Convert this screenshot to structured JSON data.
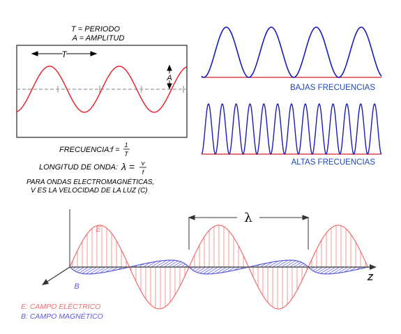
{
  "period_panel": {
    "legend_period": "T = PERIODO",
    "legend_amplitude": "A = AMPLITUD",
    "period_label": "T",
    "amplitude_label": "A"
  },
  "formulas": {
    "frequency_label": "FRECUENCIA:",
    "frequency_lhs": "f =",
    "frequency_num": "1",
    "frequency_den": "T",
    "wavelength_label": "LONGITUD DE ONDA:",
    "wavelength_lhs": "λ =",
    "wavelength_num": "v",
    "wavelength_den": "f",
    "em_note_line1": "PARA ONDAS ELECTROMAGNÉTICAS,",
    "em_note_line2": "V ES LA VELOCIDAD DE LA LUZ (C)"
  },
  "low_freq": {
    "label": "BAJAS FRECUENCIAS",
    "cycles": 4
  },
  "high_freq": {
    "label": "ALTAS FRECUENCIAS",
    "cycles": 13
  },
  "em_wave": {
    "lambda_label": "λ",
    "e_label": "E",
    "b_label": "B",
    "z_label": "Z",
    "legend_e": "E: CAMPO ELÉCTRICO",
    "legend_b": "B: CAMPO MAGNÉTICO"
  },
  "colors": {
    "wave_red": "#e8262f",
    "panel_line": "#222222",
    "axis_gray": "#999999",
    "freq_wave_blue": "#1a1ab8",
    "freq_baseline_red": "#d41f26",
    "freq_label_blue": "#1f48b8",
    "e_field": "#f07a7a",
    "b_field": "#6a6ae0",
    "em_axis": "#555555"
  }
}
